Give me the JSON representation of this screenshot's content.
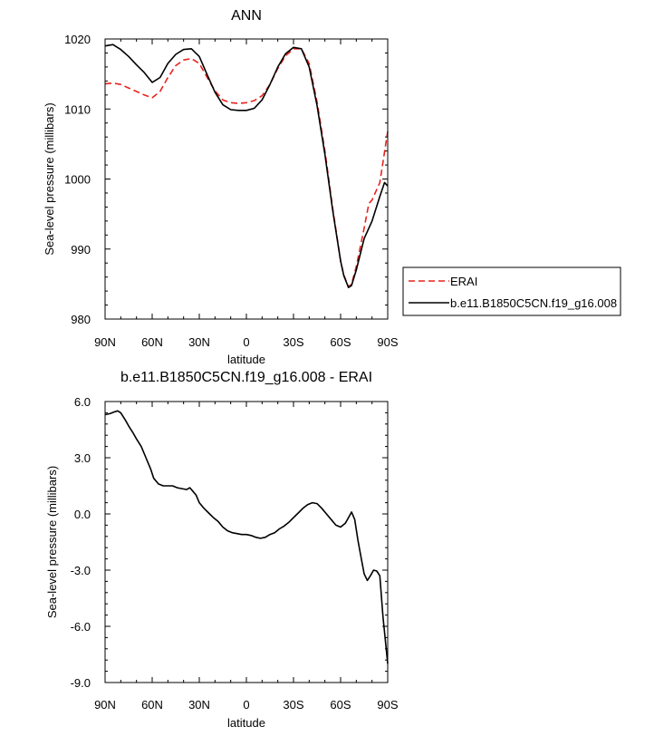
{
  "chart_data": [
    {
      "type": "line",
      "title": "ANN",
      "xlabel": "latitude",
      "ylabel": "Sea-level pressure (millibars)",
      "xlim": [
        -90,
        90
      ],
      "ylim": [
        980,
        1020
      ],
      "x_tick_labels": [
        "90N",
        "60N",
        "30N",
        "0",
        "30S",
        "60S",
        "90S"
      ],
      "y_tick_labels": [
        "980",
        "990",
        "1000",
        "1010",
        "1020"
      ],
      "legend": {
        "position": "right",
        "entries": [
          "ERAI",
          "b.e11.B1850C5CN.f19_g16.008"
        ]
      },
      "series": [
        {
          "name": "ERAI",
          "color": "#e8221c",
          "style": "dashed",
          "x": [
            -90,
            -85,
            -80,
            -75,
            -70,
            -65,
            -60,
            -55,
            -50,
            -45,
            -40,
            -35,
            -30,
            -25,
            -20,
            -15,
            -10,
            -5,
            0,
            5,
            10,
            15,
            20,
            25,
            30,
            35,
            40,
            45,
            50,
            55,
            60,
            62,
            65,
            67,
            70,
            75,
            78,
            80,
            85,
            90
          ],
          "y": [
            1013.6,
            1013.7,
            1013.5,
            1013.0,
            1012.5,
            1012.0,
            1011.6,
            1012.5,
            1014.5,
            1016.2,
            1017.0,
            1017.2,
            1016.5,
            1014.5,
            1012.6,
            1011.3,
            1010.9,
            1010.8,
            1010.9,
            1011.2,
            1011.9,
            1013.5,
            1015.8,
            1017.6,
            1018.6,
            1018.6,
            1016.5,
            1011.0,
            1004.0,
            995.8,
            988.3,
            986.3,
            984.6,
            985.0,
            987.5,
            993.0,
            996.5,
            997.0,
            999.5,
            1006.8
          ]
        },
        {
          "name": "b.e11.B1850C5CN.f19_g16.008",
          "color": "#000000",
          "style": "solid",
          "x": [
            -90,
            -85,
            -80,
            -75,
            -70,
            -65,
            -60,
            -55,
            -50,
            -45,
            -40,
            -35,
            -30,
            -25,
            -20,
            -15,
            -10,
            -5,
            0,
            5,
            10,
            15,
            20,
            25,
            30,
            35,
            40,
            45,
            50,
            55,
            60,
            62,
            65,
            67,
            70,
            75,
            80,
            85,
            88,
            90
          ],
          "y": [
            1019.0,
            1019.2,
            1018.5,
            1017.5,
            1016.3,
            1015.2,
            1013.8,
            1014.5,
            1016.5,
            1017.8,
            1018.5,
            1018.6,
            1017.5,
            1014.9,
            1012.4,
            1010.6,
            1009.9,
            1009.8,
            1009.8,
            1010.1,
            1011.3,
            1013.5,
            1016.0,
            1017.9,
            1018.8,
            1018.6,
            1016.0,
            1010.5,
            1003.5,
            995.5,
            988.3,
            986.2,
            984.5,
            984.8,
            987.0,
            991.5,
            994.0,
            997.5,
            999.5,
            999.0
          ]
        }
      ]
    },
    {
      "type": "line",
      "title": "b.e11.B1850C5CN.f19_g16.008 - ERAI",
      "xlabel": "latitude",
      "ylabel": "Sea-level pressure (millibars)",
      "xlim": [
        -90,
        90
      ],
      "ylim": [
        -9,
        6
      ],
      "x_tick_labels": [
        "90N",
        "60N",
        "30N",
        "0",
        "30S",
        "60S",
        "90S"
      ],
      "y_tick_labels": [
        "-9.0",
        "-6.0",
        "-3.0",
        "0.0",
        "3.0",
        "6.0"
      ],
      "series": [
        {
          "color": "#000000",
          "style": "solid",
          "x": [
            -90,
            -87,
            -84,
            -82,
            -80,
            -77,
            -75,
            -72,
            -70,
            -67,
            -64,
            -61,
            -59,
            -56,
            -53,
            -50,
            -47,
            -44,
            -41,
            -38,
            -36,
            -34,
            -32,
            -30,
            -27,
            -24,
            -21,
            -18,
            -15,
            -12,
            -9,
            -6,
            -3,
            0,
            3,
            6,
            9,
            12,
            15,
            18,
            21,
            24,
            27,
            30,
            33,
            36,
            39,
            42,
            45,
            48,
            51,
            54,
            57,
            60,
            63,
            65,
            67,
            69,
            71,
            73,
            75,
            77,
            79,
            81,
            83,
            85,
            87,
            90
          ],
          "y": [
            5.3,
            5.35,
            5.45,
            5.5,
            5.4,
            5.0,
            4.7,
            4.3,
            4.0,
            3.6,
            3.0,
            2.4,
            1.9,
            1.6,
            1.5,
            1.5,
            1.5,
            1.4,
            1.35,
            1.3,
            1.4,
            1.2,
            1.0,
            0.6,
            0.3,
            0.05,
            -0.2,
            -0.4,
            -0.7,
            -0.9,
            -1.0,
            -1.05,
            -1.1,
            -1.1,
            -1.15,
            -1.25,
            -1.3,
            -1.25,
            -1.1,
            -1.0,
            -0.8,
            -0.65,
            -0.45,
            -0.2,
            0.05,
            0.3,
            0.5,
            0.6,
            0.55,
            0.3,
            0.0,
            -0.3,
            -0.6,
            -0.7,
            -0.5,
            -0.2,
            0.1,
            -0.3,
            -1.4,
            -2.3,
            -3.2,
            -3.55,
            -3.3,
            -3.0,
            -3.05,
            -3.3,
            -5.5,
            -8.0
          ]
        }
      ]
    }
  ]
}
